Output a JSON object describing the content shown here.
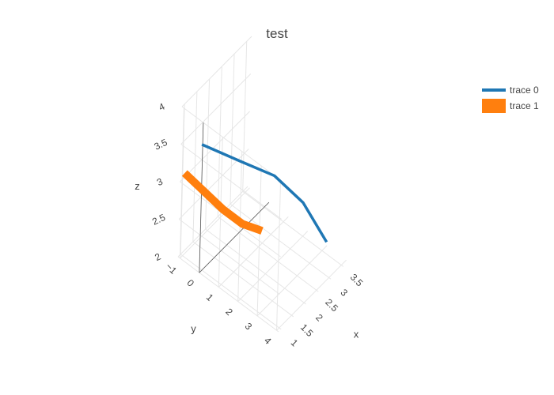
{
  "chart_data": {
    "type": "line3d",
    "title": "test",
    "axes": {
      "x": {
        "label": "x",
        "range": [
          0.9,
          3.7
        ],
        "ticks": [
          "1",
          "1.5",
          "2",
          "2.5",
          "3",
          "3.5"
        ],
        "tick_values": [
          1,
          1.5,
          2,
          2.5,
          3,
          3.5
        ]
      },
      "y": {
        "label": "y",
        "range": [
          -1.1,
          4.1
        ],
        "ticks": [
          "−1",
          "0",
          "1",
          "2",
          "3",
          "4"
        ],
        "tick_values": [
          -1,
          0,
          1,
          2,
          3,
          4
        ]
      },
      "z": {
        "label": "z",
        "range": [
          2.0,
          4.0
        ],
        "ticks": [
          "2",
          "2.5",
          "3",
          "3.5",
          "4"
        ],
        "tick_values": [
          2,
          2.5,
          3,
          3.5,
          4
        ]
      }
    },
    "grid": true,
    "legend_position": "top-right",
    "series": [
      {
        "name": "trace 0",
        "color": "#1f77b4",
        "x": [
          3.6,
          3.4,
          3.0,
          2.4,
          1.6
        ],
        "y": [
          3.1,
          2.1,
          1.1,
          0.1,
          -0.9
        ],
        "z": [
          2.1,
          2.5,
          2.8,
          3.0,
          3.3
        ]
      },
      {
        "name": "trace 1",
        "color": "#ff7f0e",
        "x": [
          1.0,
          1.0,
          1.0,
          1.0,
          1.0
        ],
        "y": [
          -1.0,
          0.0,
          1.0,
          2.0,
          3.0
        ],
        "z": [
          3.1,
          3.05,
          3.0,
          3.0,
          3.1
        ]
      }
    ]
  },
  "legend": {
    "items": [
      {
        "label": "trace 0",
        "color": "#1f77b4"
      },
      {
        "label": "trace 1",
        "color": "#ff7f0e"
      }
    ]
  }
}
